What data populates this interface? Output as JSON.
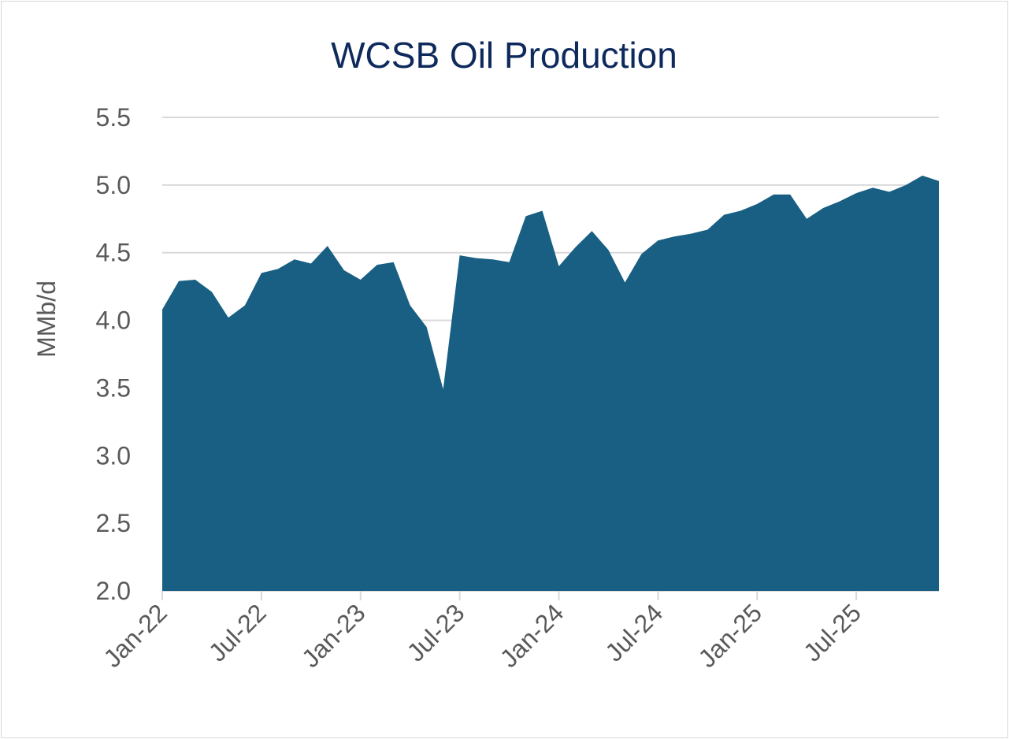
{
  "chart_data": {
    "type": "area",
    "title": "WCSB Oil Production",
    "ylabel": "MMb/d",
    "xlabel": "",
    "ylim": [
      2.0,
      5.5
    ],
    "y_ticks": [
      "2.0",
      "2.5",
      "3.0",
      "3.5",
      "4.0",
      "4.5",
      "5.0",
      "5.5"
    ],
    "x_tick_labels": [
      "Jan-22",
      "Jul-22",
      "Jan-23",
      "Jul-23",
      "Jan-24",
      "Jul-24",
      "Jan-25",
      "Jul-25"
    ],
    "grid": "horizontal",
    "legend": "none",
    "fill_color": "#185f83",
    "x": [
      "Jan-22",
      "Feb-22",
      "Mar-22",
      "Apr-22",
      "May-22",
      "Jun-22",
      "Jul-22",
      "Aug-22",
      "Sep-22",
      "Oct-22",
      "Nov-22",
      "Dec-22",
      "Jan-23",
      "Feb-23",
      "Mar-23",
      "Apr-23",
      "May-23",
      "Jun-23",
      "Jul-23",
      "Aug-23",
      "Sep-23",
      "Oct-23",
      "Nov-23",
      "Dec-23",
      "Jan-24",
      "Feb-24",
      "Mar-24",
      "Apr-24",
      "May-24",
      "Jun-24",
      "Jul-24",
      "Aug-24",
      "Sep-24",
      "Oct-24",
      "Nov-24",
      "Dec-24",
      "Jan-25",
      "Feb-25",
      "Mar-25",
      "Apr-25",
      "May-25",
      "Jun-25",
      "Jul-25",
      "Aug-25",
      "Sep-25",
      "Oct-25",
      "Nov-25",
      "Dec-25"
    ],
    "values": [
      4.08,
      4.29,
      4.3,
      4.21,
      4.02,
      4.11,
      4.35,
      4.38,
      4.45,
      4.42,
      4.55,
      4.37,
      4.3,
      4.41,
      4.43,
      4.11,
      3.95,
      3.49,
      4.48,
      4.46,
      4.45,
      4.43,
      4.77,
      4.81,
      4.4,
      4.54,
      4.66,
      4.52,
      4.28,
      4.49,
      4.59,
      4.62,
      4.64,
      4.67,
      4.78,
      4.81,
      4.86,
      4.93,
      4.93,
      4.75,
      4.83,
      4.88,
      4.94,
      4.98,
      4.95,
      5.0,
      5.07,
      5.03
    ]
  }
}
